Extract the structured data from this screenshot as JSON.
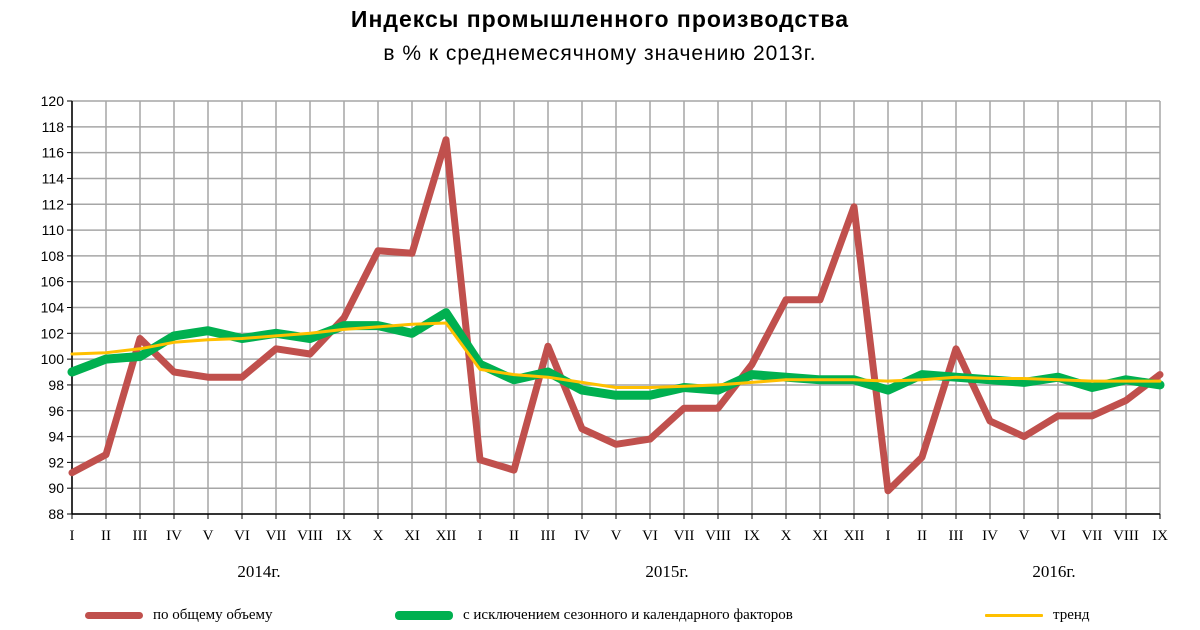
{
  "chart_data": {
    "type": "line",
    "title": "Индексы промышленного производства",
    "subtitle": "в % к среднемесячному значению 2013г.",
    "ylim": [
      88,
      120
    ],
    "y_ticks": [
      88,
      90,
      92,
      94,
      96,
      98,
      100,
      102,
      104,
      106,
      108,
      110,
      112,
      114,
      116,
      118,
      120
    ],
    "categories": [
      "I",
      "II",
      "III",
      "IV",
      "V",
      "VI",
      "VII",
      "VIII",
      "IX",
      "X",
      "XI",
      "XII",
      "I",
      "II",
      "III",
      "IV",
      "V",
      "VI",
      "VII",
      "VIII",
      "IX",
      "X",
      "XI",
      "XII",
      "I",
      "II",
      "III",
      "IV",
      "V",
      "VI",
      "VII",
      "VIII",
      "IX"
    ],
    "years": [
      "2014г.",
      "2015г.",
      "2016г."
    ],
    "grid": true,
    "legend_position": "bottom",
    "series": [
      {
        "name": "по общему объему",
        "color": "#c0504d",
        "values": [
          91.2,
          92.6,
          101.6,
          99.0,
          98.6,
          98.6,
          100.8,
          100.4,
          103.2,
          108.4,
          108.2,
          117.0,
          92.2,
          91.4,
          101.0,
          94.6,
          93.4,
          93.8,
          96.2,
          96.2,
          99.6,
          104.6,
          104.6,
          111.8,
          89.8,
          92.4,
          100.8,
          95.2,
          94.0,
          95.6,
          95.6,
          96.8,
          98.8
        ]
      },
      {
        "name": "с исключением сезонного и календарного факторов",
        "color": "#00b050",
        "values": [
          99.0,
          100.0,
          100.2,
          101.8,
          102.2,
          101.6,
          102.0,
          101.6,
          102.6,
          102.6,
          102.0,
          103.6,
          99.6,
          98.4,
          99.0,
          97.6,
          97.2,
          97.2,
          97.8,
          97.6,
          98.8,
          98.6,
          98.4,
          98.4,
          97.6,
          98.8,
          98.6,
          98.4,
          98.2,
          98.6,
          97.8,
          98.4,
          98.0
        ]
      },
      {
        "name": "тренд",
        "color": "#ffc000",
        "values": [
          100.4,
          100.5,
          100.8,
          101.3,
          101.5,
          101.6,
          101.8,
          102.0,
          102.3,
          102.5,
          102.7,
          102.8,
          99.2,
          98.8,
          98.6,
          98.2,
          97.8,
          97.8,
          97.9,
          98.0,
          98.2,
          98.4,
          98.4,
          98.4,
          98.3,
          98.4,
          98.6,
          98.5,
          98.5,
          98.4,
          98.3,
          98.3,
          98.3
        ]
      }
    ]
  }
}
